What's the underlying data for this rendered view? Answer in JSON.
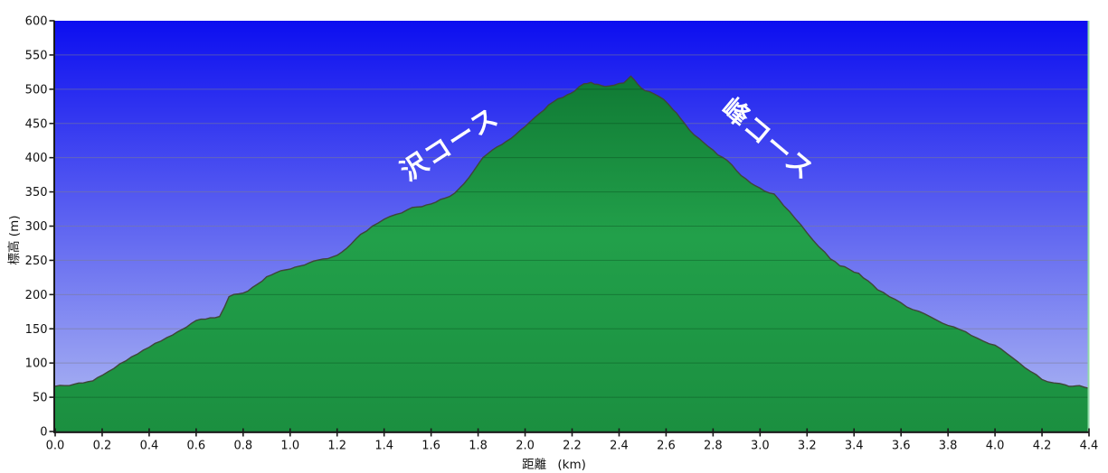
{
  "chart_data": {
    "type": "area",
    "title": "",
    "xlabel": "距離 (km)",
    "ylabel": "標高 (m)",
    "xlim": [
      0.0,
      4.4
    ],
    "ylim": [
      0,
      600
    ],
    "grid": "horizontal-only",
    "legend": "none",
    "x_ticks": [
      0.0,
      0.2,
      0.4,
      0.6,
      0.8,
      1.0,
      1.2,
      1.4,
      1.6,
      1.8,
      2.0,
      2.2,
      2.4,
      2.6,
      2.8,
      3.0,
      3.2,
      3.4,
      3.6,
      3.8,
      4.0,
      4.2,
      4.4
    ],
    "x_tick_labels": [
      "0.0",
      "0.2",
      "0.4",
      "0.6",
      "0.8",
      "1.0",
      "1.2",
      "1.4",
      "1.6",
      "1.8",
      "2.0",
      "2.2",
      "2.4",
      "2.6",
      "2.8",
      "3.0",
      "3.2",
      "3.4",
      "3.6",
      "3.8",
      "4.0",
      "4.2",
      "4.4"
    ],
    "y_ticks": [
      0,
      50,
      100,
      150,
      200,
      250,
      300,
      350,
      400,
      450,
      500,
      550,
      600
    ],
    "y_tick_labels": [
      "0",
      "50",
      "100",
      "150",
      "200",
      "250",
      "300",
      "350",
      "400",
      "450",
      "500",
      "550",
      "600"
    ],
    "series": [
      {
        "name": "elevation-profile",
        "x_unit": "km",
        "y_unit": "m",
        "points": [
          [
            0.0,
            66
          ],
          [
            0.04,
            67
          ],
          [
            0.08,
            69
          ],
          [
            0.12,
            71
          ],
          [
            0.16,
            74
          ],
          [
            0.2,
            82
          ],
          [
            0.25,
            92
          ],
          [
            0.3,
            103
          ],
          [
            0.35,
            113
          ],
          [
            0.4,
            123
          ],
          [
            0.45,
            132
          ],
          [
            0.5,
            141
          ],
          [
            0.54,
            149
          ],
          [
            0.58,
            158
          ],
          [
            0.62,
            164
          ],
          [
            0.66,
            166
          ],
          [
            0.68,
            166
          ],
          [
            0.7,
            168
          ],
          [
            0.74,
            197
          ],
          [
            0.78,
            201
          ],
          [
            0.82,
            205
          ],
          [
            0.86,
            215
          ],
          [
            0.9,
            226
          ],
          [
            0.94,
            232
          ],
          [
            0.98,
            236
          ],
          [
            1.02,
            240
          ],
          [
            1.06,
            243
          ],
          [
            1.1,
            249
          ],
          [
            1.14,
            252
          ],
          [
            1.18,
            255
          ],
          [
            1.22,
            262
          ],
          [
            1.26,
            274
          ],
          [
            1.3,
            288
          ],
          [
            1.35,
            300
          ],
          [
            1.4,
            310
          ],
          [
            1.45,
            317
          ],
          [
            1.5,
            324
          ],
          [
            1.54,
            328
          ],
          [
            1.58,
            331
          ],
          [
            1.62,
            335
          ],
          [
            1.66,
            341
          ],
          [
            1.7,
            348
          ],
          [
            1.74,
            362
          ],
          [
            1.78,
            380
          ],
          [
            1.82,
            400
          ],
          [
            1.86,
            411
          ],
          [
            1.9,
            419
          ],
          [
            1.94,
            428
          ],
          [
            1.98,
            440
          ],
          [
            2.02,
            452
          ],
          [
            2.06,
            464
          ],
          [
            2.1,
            477
          ],
          [
            2.14,
            486
          ],
          [
            2.18,
            492
          ],
          [
            2.21,
            497
          ],
          [
            2.25,
            508
          ],
          [
            2.28,
            510
          ],
          [
            2.31,
            507
          ],
          [
            2.34,
            504
          ],
          [
            2.38,
            506
          ],
          [
            2.42,
            509
          ],
          [
            2.45,
            519
          ],
          [
            2.48,
            507
          ],
          [
            2.51,
            498
          ],
          [
            2.55,
            493
          ],
          [
            2.59,
            485
          ],
          [
            2.63,
            470
          ],
          [
            2.66,
            458
          ],
          [
            2.7,
            440
          ],
          [
            2.74,
            428
          ],
          [
            2.78,
            416
          ],
          [
            2.82,
            404
          ],
          [
            2.86,
            396
          ],
          [
            2.9,
            381
          ],
          [
            2.94,
            369
          ],
          [
            2.98,
            359
          ],
          [
            3.02,
            351
          ],
          [
            3.06,
            347
          ],
          [
            3.1,
            330
          ],
          [
            3.15,
            311
          ],
          [
            3.2,
            290
          ],
          [
            3.25,
            270
          ],
          [
            3.3,
            252
          ],
          [
            3.34,
            242
          ],
          [
            3.38,
            237
          ],
          [
            3.42,
            231
          ],
          [
            3.46,
            220
          ],
          [
            3.5,
            207
          ],
          [
            3.55,
            197
          ],
          [
            3.6,
            188
          ],
          [
            3.65,
            178
          ],
          [
            3.7,
            172
          ],
          [
            3.75,
            163
          ],
          [
            3.8,
            155
          ],
          [
            3.85,
            149
          ],
          [
            3.9,
            140
          ],
          [
            3.95,
            132
          ],
          [
            4.0,
            126
          ],
          [
            4.05,
            114
          ],
          [
            4.1,
            101
          ],
          [
            4.15,
            88
          ],
          [
            4.2,
            76
          ],
          [
            4.25,
            71
          ],
          [
            4.3,
            68
          ],
          [
            4.33,
            66
          ],
          [
            4.36,
            67
          ],
          [
            4.4,
            63
          ]
        ]
      }
    ],
    "annotations": [
      {
        "text": "沢コース",
        "x_km": 1.7,
        "y_m": 409,
        "rotation_deg": -33,
        "color": "#ffffff"
      },
      {
        "text": "峰コース",
        "x_km": 3.01,
        "y_m": 417,
        "rotation_deg": 40,
        "color": "#ffffff"
      }
    ],
    "colors": {
      "sky_gradient_top": "#0c0ef0",
      "sky_gradient_bottom": "#b2bcf2",
      "hill_gradient_top": "#107a34",
      "hill_gradient_mid": "#22a04a",
      "hill_gradient_bottom": "#1b8f40",
      "hill_outline": "#3f4538",
      "gridline": "#7d7d91",
      "axis": "#1a1a1a",
      "right_border": "#93dbaa",
      "tick_label": "#111111"
    }
  }
}
